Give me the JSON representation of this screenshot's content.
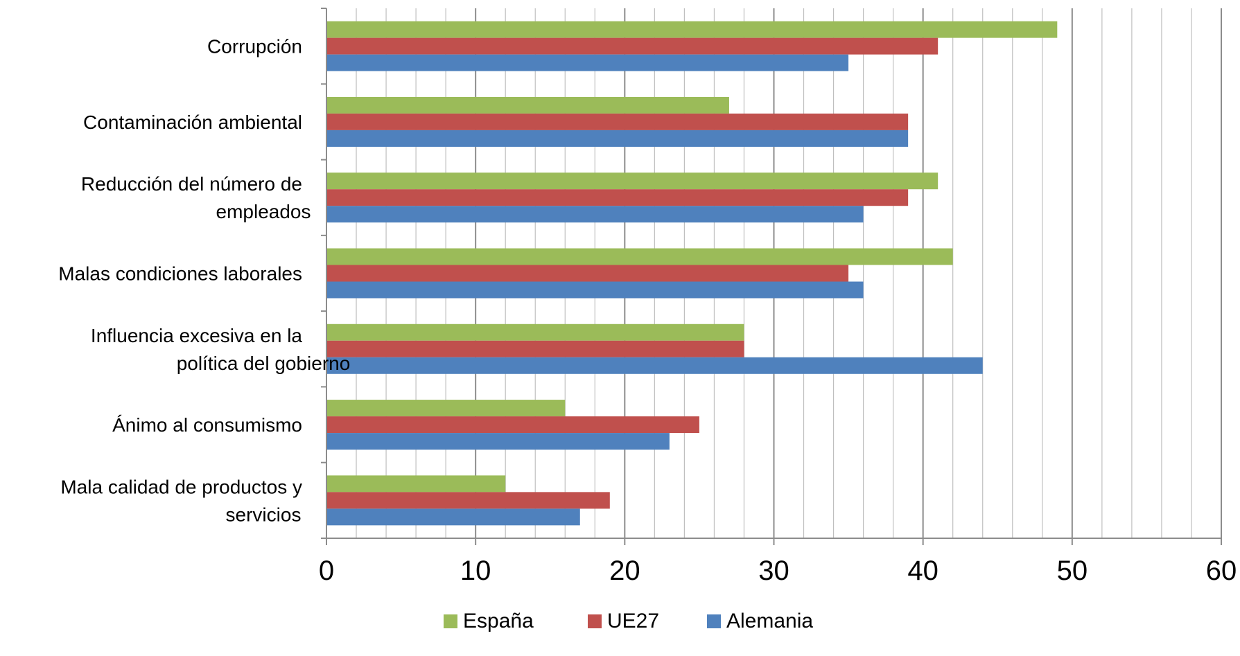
{
  "chart_data": {
    "type": "bar",
    "orientation": "horizontal",
    "title": "",
    "xlabel": "",
    "ylabel": "",
    "xlim": [
      0,
      60
    ],
    "x_major_ticks": [
      0,
      10,
      20,
      30,
      40,
      50,
      60
    ],
    "x_minor_step": 2,
    "grid": true,
    "legend_position": "bottom",
    "categories": [
      [
        "Corrupción"
      ],
      [
        "Contaminación ambiental"
      ],
      [
        "Reducción del número de",
        "empleados"
      ],
      [
        "Malas condiciones laborales"
      ],
      [
        "Influencia excesiva en la",
        "política del gobierno"
      ],
      [
        "Ánimo al consumismo"
      ],
      [
        "Mala calidad de productos y",
        "servicios"
      ]
    ],
    "series": [
      {
        "name": "España",
        "color": "#9BBB59",
        "values": [
          49,
          27,
          41,
          42,
          28,
          16,
          12
        ]
      },
      {
        "name": "UE27",
        "color": "#C0504D",
        "values": [
          41,
          39,
          39,
          35,
          28,
          25,
          19
        ]
      },
      {
        "name": "Alemania",
        "color": "#4F81BD",
        "values": [
          35,
          39,
          36,
          36,
          44,
          23,
          17
        ]
      }
    ]
  }
}
